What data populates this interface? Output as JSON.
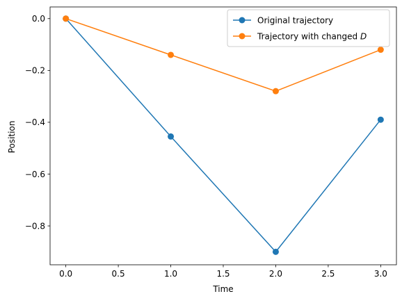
{
  "chart_data": {
    "type": "line",
    "title": "",
    "xlabel": "Time",
    "ylabel": "Position",
    "xlim": [
      -0.15,
      3.15
    ],
    "ylim": [
      -0.95,
      0.045
    ],
    "xticks": [
      0.0,
      0.5,
      1.0,
      1.5,
      2.0,
      2.5,
      3.0
    ],
    "xtick_labels": [
      "0.0",
      "0.5",
      "1.0",
      "1.5",
      "2.0",
      "2.5",
      "3.0"
    ],
    "yticks": [
      0.0,
      -0.2,
      -0.4,
      -0.6,
      -0.8
    ],
    "ytick_labels": [
      "0.0",
      "−0.2",
      "−0.4",
      "−0.6",
      "−0.8"
    ],
    "grid": false,
    "legend_position": "top-right",
    "x": [
      0,
      1,
      2,
      3
    ],
    "series": [
      {
        "name": "Original trajectory",
        "color": "#1f77b4",
        "marker": "circle",
        "values": [
          0.0,
          -0.455,
          -0.9,
          -0.39
        ]
      },
      {
        "name": "Trajectory with changed D",
        "legend_prefix": "Trajectory with changed ",
        "legend_italic": "D",
        "color": "#ff7f0e",
        "marker": "circle",
        "values": [
          0.0,
          -0.14,
          -0.28,
          -0.12
        ]
      }
    ]
  }
}
